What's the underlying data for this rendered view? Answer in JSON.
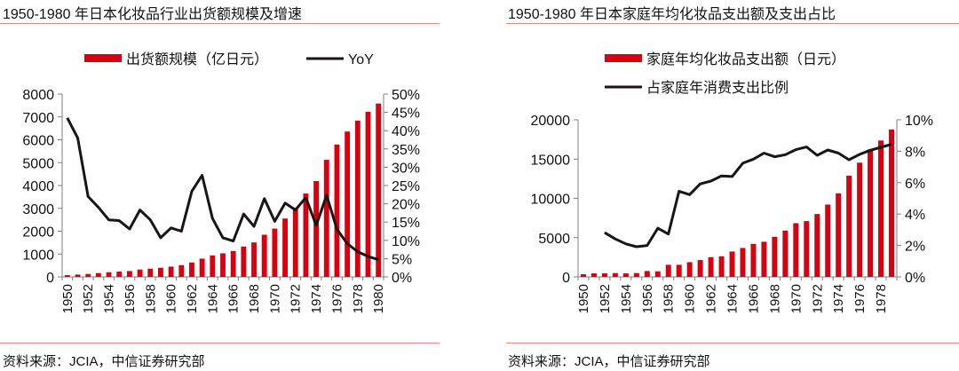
{
  "colors": {
    "bar": "#d9000f",
    "line": "#1a1414",
    "rule": "#e58a8a",
    "axis": "#808080"
  },
  "chart_data": [
    {
      "type": "bar",
      "title": "1950-1980 年日本化妆品行业出货额规模及增速",
      "source": "资料来源：JCIA，中信证券研究部",
      "categories": [
        "1950",
        "1951",
        "1952",
        "1953",
        "1954",
        "1955",
        "1956",
        "1957",
        "1958",
        "1959",
        "1960",
        "1961",
        "1962",
        "1963",
        "1964",
        "1965",
        "1966",
        "1967",
        "1968",
        "1969",
        "1970",
        "1971",
        "1972",
        "1973",
        "1974",
        "1975",
        "1976",
        "1977",
        "1978",
        "1979",
        "1980"
      ],
      "tick_labels": [
        "1950",
        "1952",
        "1954",
        "1956",
        "1958",
        "1960",
        "1962",
        "1964",
        "1966",
        "1968",
        "1970",
        "1972",
        "1974",
        "1976",
        "1978",
        "1980"
      ],
      "series": [
        {
          "name": "出货额规模（亿日元）",
          "type": "bar",
          "axis": "left",
          "values": [
            77,
            103,
            129,
            168,
            206,
            232,
            258,
            323,
            361,
            400,
            452,
            516,
            632,
            800,
            942,
            1032,
            1135,
            1329,
            1509,
            1845,
            2116,
            2555,
            3032,
            3652,
            4194,
            5123,
            5794,
            6361,
            6839,
            7226,
            7587
          ]
        },
        {
          "name": "YoY",
          "type": "line",
          "axis": "right",
          "values": [
            43.5,
            38,
            22,
            19,
            15.6,
            15.4,
            13.1,
            18.3,
            15.6,
            10.7,
            13.4,
            12.5,
            23.4,
            27.8,
            16,
            10.7,
            9.8,
            17.2,
            13.8,
            21.4,
            15.2,
            20.2,
            18.3,
            21.7,
            14.1,
            22.3,
            13,
            9.1,
            6.9,
            5.6,
            4.7
          ]
        }
      ],
      "ylim": [
        0,
        8000
      ],
      "yticks": [
        "0",
        "1000",
        "2000",
        "3000",
        "4000",
        "5000",
        "6000",
        "7000",
        "8000"
      ],
      "y2lim": [
        0,
        50
      ],
      "y2ticks": [
        "0%",
        "5%",
        "10%",
        "15%",
        "20%",
        "25%",
        "30%",
        "35%",
        "40%",
        "45%",
        "50%"
      ],
      "legend": "top"
    },
    {
      "type": "bar",
      "title": "1950-1980 年日本家庭年均化妆品支出额及支出占比",
      "source": "资料来源：JCIA，中信证券研究部",
      "categories": [
        "1950",
        "1951",
        "1952",
        "1953",
        "1954",
        "1955",
        "1956",
        "1957",
        "1958",
        "1959",
        "1960",
        "1961",
        "1962",
        "1963",
        "1964",
        "1965",
        "1966",
        "1967",
        "1968",
        "1969",
        "1970",
        "1971",
        "1972",
        "1973",
        "1974",
        "1975",
        "1976",
        "1977",
        "1978",
        "1979"
      ],
      "tick_labels": [
        "1950",
        "1952",
        "1954",
        "1956",
        "1958",
        "1960",
        "1962",
        "1964",
        "1966",
        "1968",
        "1970",
        "1972",
        "1974",
        "1976",
        "1978"
      ],
      "series": [
        {
          "name": "家庭年均化妆品支出额（日元）",
          "type": "bar",
          "axis": "left",
          "values": [
            338,
            451,
            451,
            489,
            451,
            489,
            752,
            714,
            1541,
            1541,
            1880,
            2143,
            2519,
            2632,
            3233,
            3684,
            4211,
            4474,
            5113,
            5902,
            6842,
            7105,
            8008,
            9211,
            10639,
            12895,
            14549,
            16241,
            17368,
            18759
          ]
        },
        {
          "name": "占家庭年消费支出比例",
          "type": "line",
          "axis": "right",
          "values": [
            null,
            null,
            2.82,
            2.42,
            2.1,
            1.92,
            2.0,
            3.1,
            2.73,
            5.45,
            5.24,
            5.92,
            6.1,
            6.43,
            6.39,
            7.24,
            7.5,
            7.88,
            7.65,
            7.78,
            8.1,
            8.27,
            7.74,
            8.08,
            7.88,
            7.46,
            7.8,
            8.06,
            8.25,
            8.44
          ]
        }
      ],
      "ylim": [
        0,
        20000
      ],
      "yticks": [
        "0",
        "5000",
        "10000",
        "15000",
        "20000"
      ],
      "y2lim": [
        0,
        10
      ],
      "y2ticks": [
        "0%",
        "2%",
        "4%",
        "6%",
        "8%",
        "10%"
      ],
      "legend": "top"
    }
  ]
}
